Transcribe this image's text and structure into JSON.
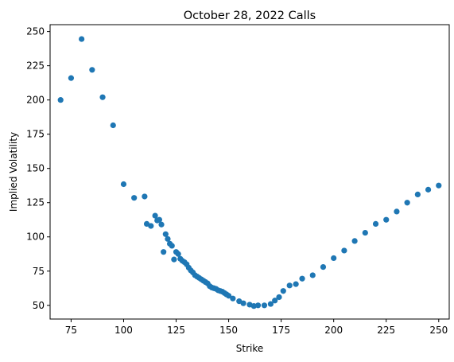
{
  "chart_data": {
    "type": "scatter",
    "title": "October 28, 2022 Calls",
    "xlabel": "Strike",
    "ylabel": "Implied Volatility",
    "xlim": [
      65,
      255
    ],
    "ylim": [
      40,
      255
    ],
    "xticks": [
      75,
      100,
      125,
      150,
      175,
      200,
      225,
      250
    ],
    "yticks": [
      50,
      75,
      100,
      125,
      150,
      175,
      200,
      225,
      250
    ],
    "grid": false,
    "marker_color": "#1f77b4",
    "points": [
      [
        70,
        200
      ],
      [
        75,
        216
      ],
      [
        80,
        244.5
      ],
      [
        85,
        222
      ],
      [
        90,
        202
      ],
      [
        95,
        181.5
      ],
      [
        100,
        138.5
      ],
      [
        105,
        128.5
      ],
      [
        110,
        129.5
      ],
      [
        111,
        109.5
      ],
      [
        113,
        108
      ],
      [
        115,
        115.5
      ],
      [
        116,
        112
      ],
      [
        117,
        112.5
      ],
      [
        118,
        109
      ],
      [
        119,
        89
      ],
      [
        120,
        102
      ],
      [
        121,
        98.5
      ],
      [
        122,
        95
      ],
      [
        123,
        93.5
      ],
      [
        124,
        83.5
      ],
      [
        125,
        89
      ],
      [
        126,
        87.5
      ],
      [
        127,
        84
      ],
      [
        128,
        82.5
      ],
      [
        129,
        81.5
      ],
      [
        130,
        80
      ],
      [
        131,
        77.5
      ],
      [
        132,
        75.5
      ],
      [
        133,
        74
      ],
      [
        134,
        72
      ],
      [
        135,
        71
      ],
      [
        136,
        70
      ],
      [
        137,
        69
      ],
      [
        138,
        68
      ],
      [
        139,
        67
      ],
      [
        140,
        66
      ],
      [
        141,
        64
      ],
      [
        142,
        63
      ],
      [
        143,
        62.5
      ],
      [
        144,
        62
      ],
      [
        145,
        61
      ],
      [
        146,
        60.5
      ],
      [
        147,
        60
      ],
      [
        148,
        59
      ],
      [
        149,
        58
      ],
      [
        150,
        57
      ],
      [
        152,
        55
      ],
      [
        155,
        53
      ],
      [
        157,
        51.5
      ],
      [
        160,
        50.5
      ],
      [
        162,
        49.5
      ],
      [
        164,
        50
      ],
      [
        167,
        50
      ],
      [
        170,
        51
      ],
      [
        172,
        53.5
      ],
      [
        174,
        56
      ],
      [
        176,
        60.5
      ],
      [
        179,
        64.5
      ],
      [
        182,
        65.5
      ],
      [
        185,
        69.5
      ],
      [
        190,
        72
      ],
      [
        195,
        78
      ],
      [
        200,
        84.5
      ],
      [
        205,
        90
      ],
      [
        210,
        97
      ],
      [
        215,
        103
      ],
      [
        220,
        109.5
      ],
      [
        225,
        112.5
      ],
      [
        230,
        118.5
      ],
      [
        235,
        125
      ],
      [
        240,
        131
      ],
      [
        245,
        134.5
      ],
      [
        250,
        137.5
      ]
    ]
  }
}
